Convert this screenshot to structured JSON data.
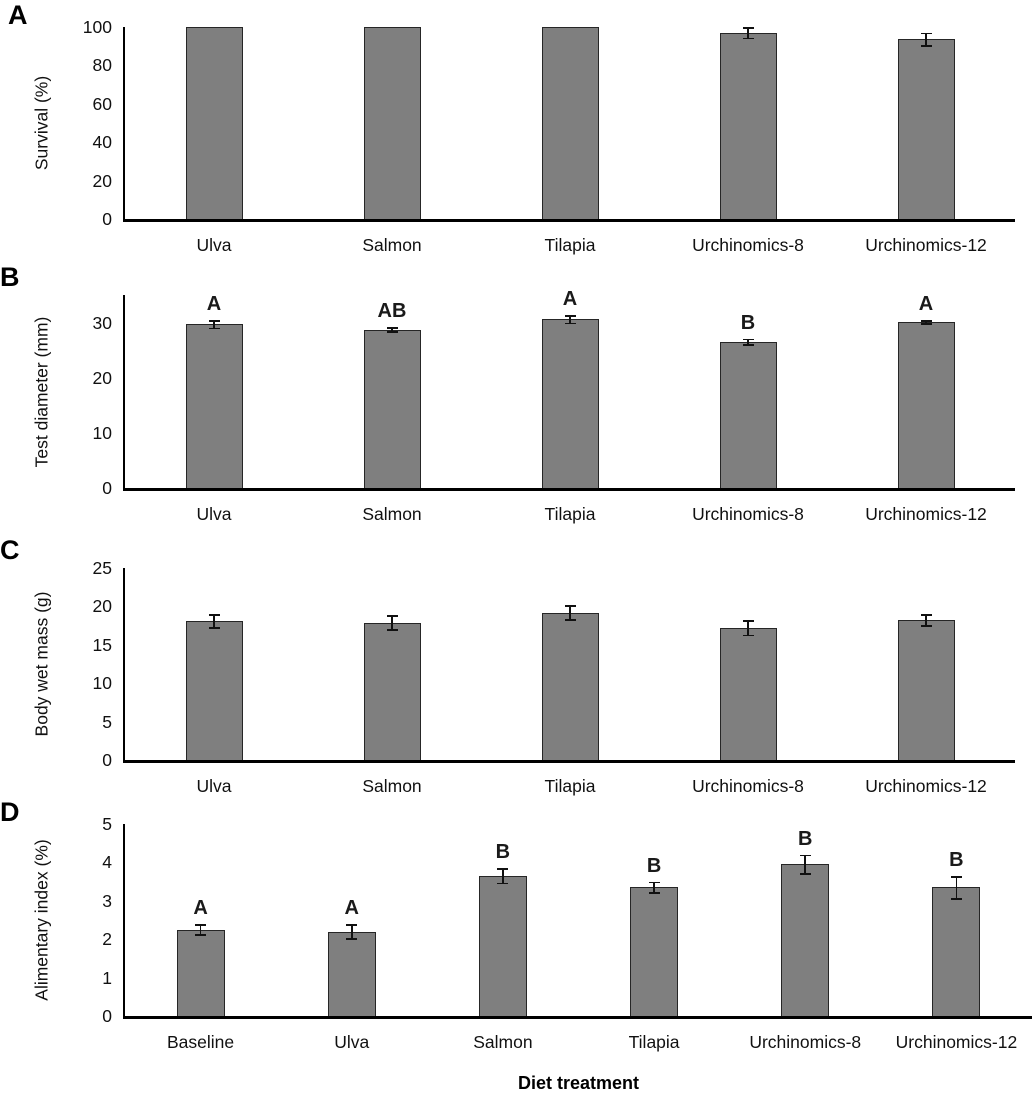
{
  "figure": {
    "bar_fill_color": "#7f7f7f",
    "bar_border_color": "#262626",
    "axis_color": "#000000",
    "x_axis_title": "Diet treatment"
  },
  "chart_data": [
    {
      "type": "bar",
      "panel": "A",
      "title": "",
      "ylabel": "Survival (%)",
      "xlabel": "",
      "categories": [
        "Ulva",
        "Salmon",
        "Tilapia",
        "Urchinomics-8",
        "Urchinomics-12"
      ],
      "values": [
        100,
        100,
        100,
        97,
        93.5
      ],
      "errors": [
        0,
        0,
        0,
        3,
        3.5
      ],
      "sig_letters": [
        "",
        "",
        "",
        "",
        ""
      ],
      "yticks": [
        0,
        20,
        40,
        60,
        80,
        100
      ],
      "ylim": [
        0,
        100
      ],
      "grid": "off",
      "legend": "none"
    },
    {
      "type": "bar",
      "panel": "B",
      "title": "",
      "ylabel": "Test diameter (mm)",
      "xlabel": "",
      "categories": [
        "Ulva",
        "Salmon",
        "Tilapia",
        "Urchinomics-8",
        "Urchinomics-12"
      ],
      "values": [
        29.7,
        28.7,
        30.6,
        26.5,
        30.1
      ],
      "errors": [
        0.8,
        0.5,
        0.8,
        0.6,
        0.4
      ],
      "sig_letters": [
        "A",
        "AB",
        "A",
        "B",
        "A"
      ],
      "yticks": [
        0,
        10,
        20,
        30
      ],
      "ylim": [
        0,
        35
      ],
      "grid": "off",
      "legend": "none"
    },
    {
      "type": "bar",
      "panel": "C",
      "title": "",
      "ylabel": "Body wet mass (g)",
      "xlabel": "",
      "categories": [
        "Ulva",
        "Salmon",
        "Tilapia",
        "Urchinomics-8",
        "Urchinomics-12"
      ],
      "values": [
        18.1,
        17.9,
        19.2,
        17.2,
        18.2
      ],
      "errors": [
        0.9,
        1.0,
        1.0,
        1.0,
        0.8
      ],
      "sig_letters": [
        "",
        "",
        "",
        "",
        ""
      ],
      "yticks": [
        0,
        5,
        10,
        15,
        20,
        25
      ],
      "ylim": [
        0,
        25
      ],
      "grid": "off",
      "legend": "none"
    },
    {
      "type": "bar",
      "panel": "D",
      "title": "",
      "ylabel": "Alimentary index (%)",
      "xlabel": "Diet treatment",
      "categories": [
        "Baseline",
        "Ulva",
        "Salmon",
        "Tilapia",
        "Urchinomics-8",
        "Urchinomics-12"
      ],
      "values": [
        2.25,
        2.2,
        3.65,
        3.35,
        3.95,
        3.35
      ],
      "errors": [
        0.15,
        0.2,
        0.2,
        0.15,
        0.25,
        0.3
      ],
      "sig_letters": [
        "A",
        "A",
        "B",
        "B",
        "B",
        "B"
      ],
      "yticks": [
        0,
        1,
        2,
        3,
        4,
        5
      ],
      "ylim": [
        0,
        5
      ],
      "grid": "off",
      "legend": "none"
    }
  ]
}
